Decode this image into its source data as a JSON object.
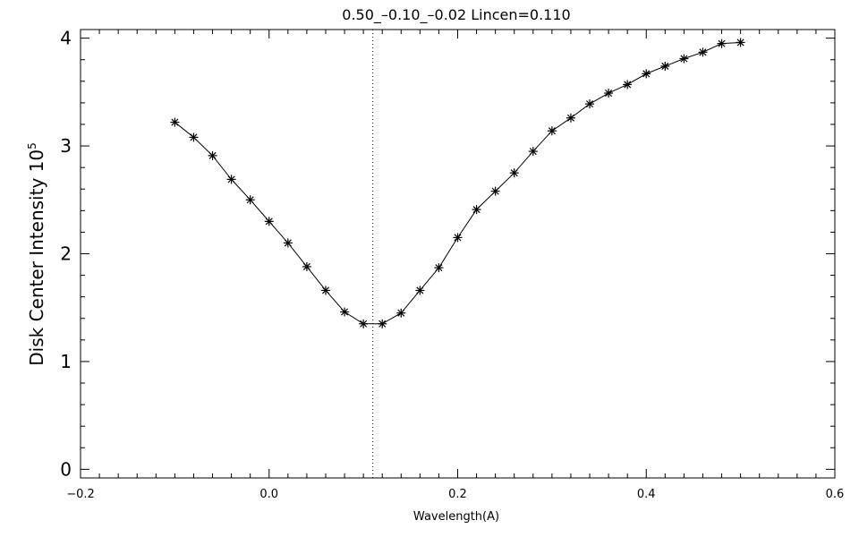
{
  "chart_data": {
    "type": "line",
    "title": "0.50_–0.10_–0.02   Lincen=0.110",
    "xlabel": "Wavelength(A)",
    "ylabel": "Disk Center Intensity 10",
    "ylabel_superscript": "5",
    "xlim": [
      -0.2,
      0.6
    ],
    "ylim": [
      -0.08,
      4.08
    ],
    "x_ticks": [
      -0.2,
      0.0,
      0.2,
      0.4,
      0.6
    ],
    "x_tick_labels": [
      "−0.2",
      "0.0",
      "0.2",
      "0.4",
      "0.6"
    ],
    "y_ticks": [
      0,
      1,
      2,
      3,
      4
    ],
    "y_tick_labels": [
      "0",
      "1",
      "2",
      "3",
      "4"
    ],
    "vertical_marker": {
      "x": 0.11,
      "style": "dotted"
    },
    "marker": "asterisk",
    "series": [
      {
        "x": [
          -0.1,
          -0.08,
          -0.06,
          -0.04,
          -0.02,
          0.0,
          0.02,
          0.04,
          0.06,
          0.08,
          0.1,
          0.12,
          0.14,
          0.16,
          0.18,
          0.2,
          0.22,
          0.24,
          0.26,
          0.28,
          0.3,
          0.32,
          0.34,
          0.36,
          0.38,
          0.4,
          0.42,
          0.44,
          0.46,
          0.48,
          0.5
        ],
        "values": [
          3.22,
          3.08,
          2.91,
          2.69,
          2.5,
          2.3,
          2.1,
          1.88,
          1.66,
          1.46,
          1.35,
          1.35,
          1.45,
          1.66,
          1.87,
          2.15,
          2.41,
          2.58,
          2.75,
          2.95,
          3.14,
          3.26,
          3.39,
          3.49,
          3.57,
          3.67,
          3.74,
          3.81,
          3.87,
          3.95,
          3.96
        ]
      }
    ]
  }
}
